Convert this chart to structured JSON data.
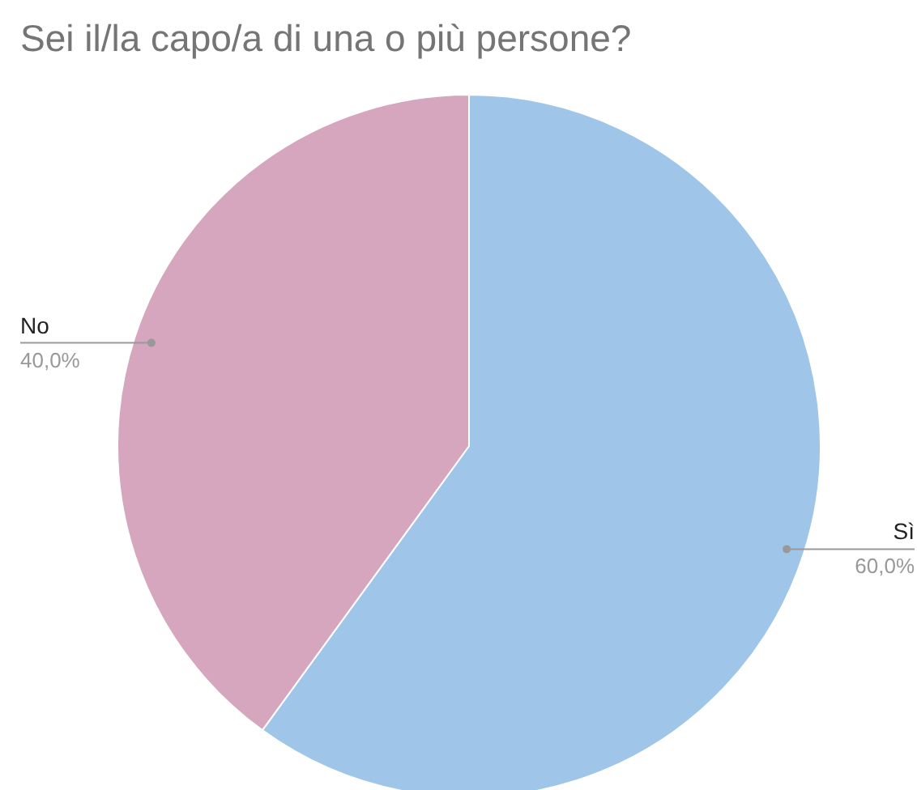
{
  "chart_data": {
    "type": "pie",
    "title": "Sei il/la capo/a di una o più persone?",
    "categories": [
      "Sì",
      "No"
    ],
    "values": [
      60,
      40
    ],
    "colors": [
      "#9fc5e8",
      "#d5a6bd"
    ],
    "value_labels": [
      "60,0%",
      "40,0%"
    ]
  }
}
